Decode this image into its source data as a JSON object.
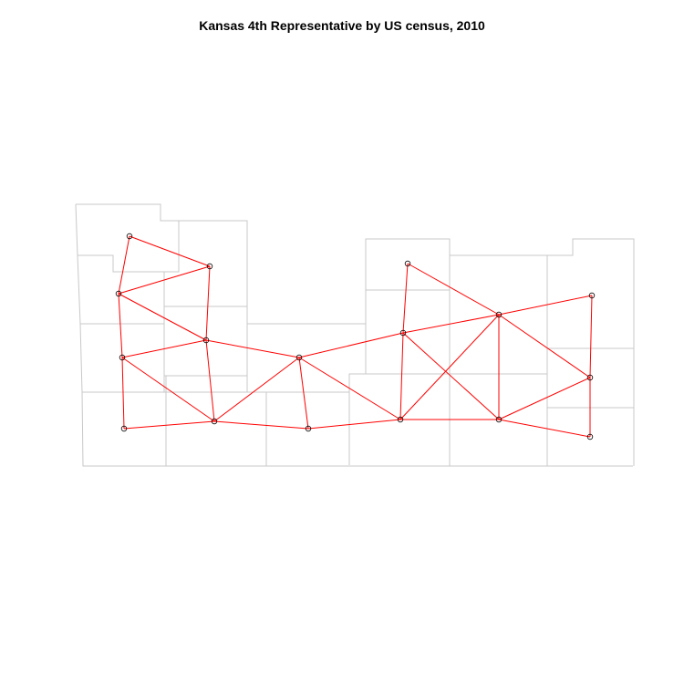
{
  "title": "Kansas 4th Representative by US census, 2010",
  "colors": {
    "background": "#ffffff",
    "county_border": "#c8c8c8",
    "edge": "#ff0000",
    "node": "#000000"
  }
}
